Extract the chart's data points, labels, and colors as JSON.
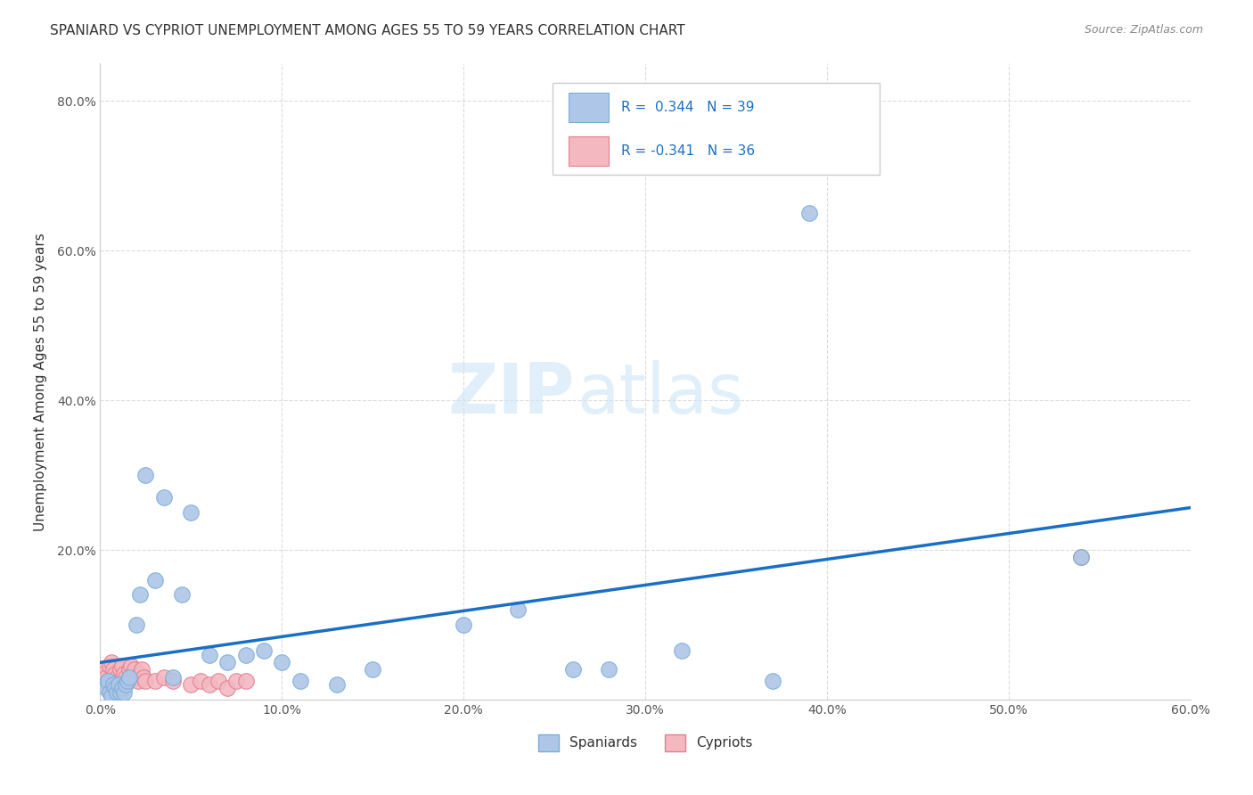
{
  "title": "SPANIARD VS CYPRIOT UNEMPLOYMENT AMONG AGES 55 TO 59 YEARS CORRELATION CHART",
  "source": "Source: ZipAtlas.com",
  "ylabel": "Unemployment Among Ages 55 to 59 years",
  "xlabel_spaniards": "Spaniards",
  "xlabel_cypriots": "Cypriots",
  "xlim": [
    0.0,
    0.6
  ],
  "ylim": [
    0.0,
    0.85
  ],
  "xticks": [
    0.0,
    0.1,
    0.2,
    0.3,
    0.4,
    0.5,
    0.6
  ],
  "yticks": [
    0.0,
    0.2,
    0.4,
    0.6,
    0.8
  ],
  "spaniards_x": [
    0.002,
    0.003,
    0.004,
    0.005,
    0.006,
    0.007,
    0.008,
    0.009,
    0.01,
    0.011,
    0.012,
    0.013,
    0.014,
    0.015,
    0.016,
    0.02,
    0.022,
    0.025,
    0.03,
    0.035,
    0.04,
    0.045,
    0.05,
    0.06,
    0.07,
    0.08,
    0.09,
    0.1,
    0.11,
    0.13,
    0.15,
    0.2,
    0.23,
    0.26,
    0.28,
    0.32,
    0.37,
    0.39,
    0.54
  ],
  "spaniards_y": [
    0.02,
    0.015,
    0.025,
    0.01,
    0.005,
    0.02,
    0.015,
    0.01,
    0.02,
    0.01,
    0.015,
    0.01,
    0.02,
    0.025,
    0.03,
    0.1,
    0.14,
    0.3,
    0.16,
    0.27,
    0.03,
    0.14,
    0.25,
    0.06,
    0.05,
    0.06,
    0.065,
    0.05,
    0.025,
    0.02,
    0.04,
    0.1,
    0.12,
    0.04,
    0.04,
    0.065,
    0.025,
    0.65,
    0.19
  ],
  "cypriots_x": [
    0.001,
    0.002,
    0.003,
    0.004,
    0.005,
    0.006,
    0.007,
    0.008,
    0.009,
    0.01,
    0.011,
    0.012,
    0.013,
    0.014,
    0.015,
    0.016,
    0.017,
    0.018,
    0.019,
    0.02,
    0.021,
    0.022,
    0.023,
    0.024,
    0.025,
    0.03,
    0.035,
    0.04,
    0.05,
    0.055,
    0.06,
    0.065,
    0.07,
    0.075,
    0.08,
    0.54
  ],
  "cypriots_y": [
    0.04,
    0.035,
    0.03,
    0.025,
    0.045,
    0.05,
    0.04,
    0.035,
    0.03,
    0.025,
    0.04,
    0.045,
    0.035,
    0.03,
    0.025,
    0.04,
    0.045,
    0.035,
    0.04,
    0.03,
    0.025,
    0.035,
    0.04,
    0.03,
    0.025,
    0.025,
    0.03,
    0.025,
    0.02,
    0.025,
    0.02,
    0.025,
    0.015,
    0.025,
    0.025,
    0.19
  ],
  "spaniards_color": "#aec6e8",
  "spaniards_edge_color": "#7aaed6",
  "cypriots_color": "#f4b8c1",
  "cypriots_edge_color": "#e08090",
  "trend_color": "#1a6fc4",
  "legend_color_spaniards": "#aec6e8",
  "legend_color_cypriots": "#f4b8c1",
  "watermark_zip": "ZIP",
  "watermark_atlas": "atlas",
  "background_color": "#ffffff",
  "grid_color": "#cccccc",
  "text_color": "#1a6fc4",
  "title_color": "#333333",
  "source_color": "#888888"
}
